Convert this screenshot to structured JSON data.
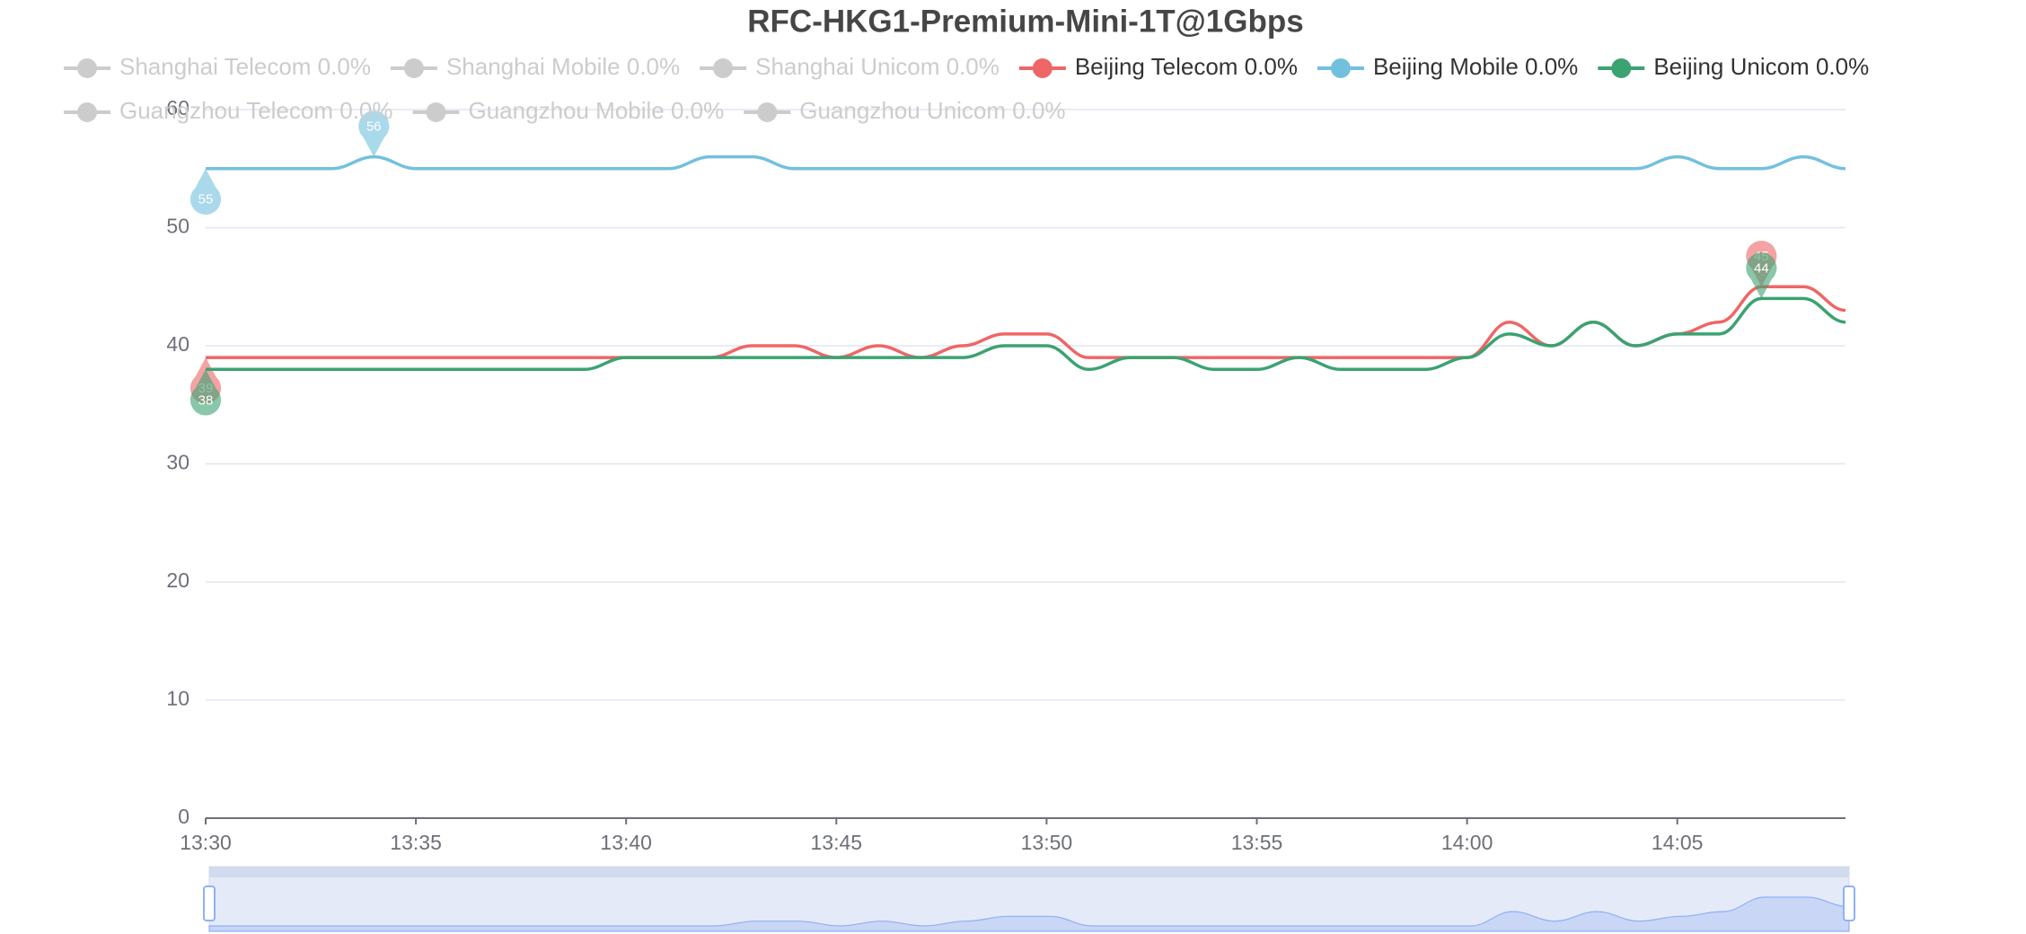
{
  "chart_data": {
    "type": "line",
    "title": "RFC-HKG1-Premium-Mini-1T@1Gbps",
    "categories": [
      "13:30",
      null,
      null,
      null,
      null,
      "13:35",
      null,
      null,
      null,
      null,
      "13:40",
      null,
      null,
      null,
      null,
      "13:45",
      null,
      null,
      null,
      null,
      "13:50",
      null,
      null,
      null,
      null,
      "13:55",
      null,
      null,
      null,
      null,
      "14:00",
      null,
      null,
      null,
      null,
      "14:05",
      null,
      null,
      null,
      null
    ],
    "series": [
      {
        "name": "Shanghai Telecom 0.0%",
        "visible": false
      },
      {
        "name": "Shanghai Mobile 0.0%",
        "visible": false
      },
      {
        "name": "Shanghai Unicom 0.0%",
        "visible": false
      },
      {
        "name": "Beijing Telecom 0.0%",
        "visible": true,
        "color": "#ee6666",
        "values": [
          39,
          39,
          39,
          39,
          39,
          39,
          39,
          39,
          39,
          39,
          39,
          39,
          39,
          40,
          40,
          39,
          40,
          39,
          40,
          41,
          41,
          39,
          39,
          39,
          39,
          39,
          39,
          39,
          39,
          39,
          39,
          42,
          40,
          42,
          40,
          41,
          42,
          45,
          45,
          43
        ]
      },
      {
        "name": "Beijing Mobile 0.0%",
        "visible": true,
        "color": "#73c0de",
        "values": [
          55,
          55,
          55,
          55,
          56,
          55,
          55,
          55,
          55,
          55,
          55,
          55,
          56,
          56,
          55,
          55,
          55,
          55,
          55,
          55,
          55,
          55,
          55,
          55,
          55,
          55,
          55,
          55,
          55,
          55,
          55,
          55,
          55,
          55,
          55,
          56,
          55,
          55,
          56,
          55
        ]
      },
      {
        "name": "Beijing Unicom 0.0%",
        "visible": true,
        "color": "#3ba272",
        "values": [
          38,
          38,
          38,
          38,
          38,
          38,
          38,
          38,
          38,
          38,
          39,
          39,
          39,
          39,
          39,
          39,
          39,
          39,
          39,
          40,
          40,
          38,
          39,
          39,
          38,
          38,
          39,
          38,
          38,
          38,
          39,
          41,
          40,
          42,
          40,
          41,
          41,
          44,
          44,
          42
        ]
      },
      {
        "name": "Guangzhou Telecom 0.0%",
        "visible": false
      },
      {
        "name": "Guangzhou Mobile 0.0%",
        "visible": false
      },
      {
        "name": "Guangzhou Unicom 0.0%",
        "visible": false
      }
    ],
    "ylim": [
      0,
      60
    ],
    "yticks": [
      0,
      10,
      20,
      30,
      40,
      50,
      60
    ],
    "grid": true,
    "mark_max": true,
    "mark_min": true,
    "smooth": true,
    "data_zoom": true
  }
}
